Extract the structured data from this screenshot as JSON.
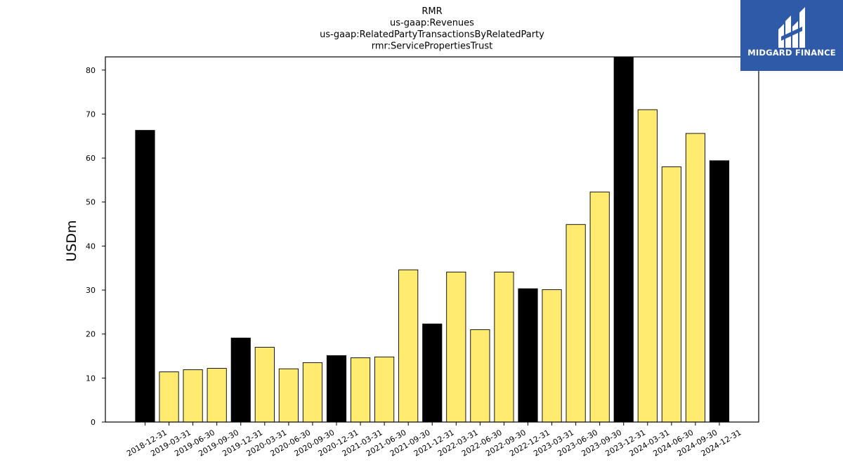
{
  "chart_data": {
    "type": "bar",
    "title_lines": [
      "RMR",
      "us-gaap:Revenues",
      "us-gaap:RelatedPartyTransactionsByRelatedParty",
      "rmr:ServicePropertiesTrust"
    ],
    "xlabel": "",
    "ylabel": "USDm",
    "ylim": [
      0,
      83
    ],
    "yticks": [
      0,
      10,
      20,
      30,
      40,
      50,
      60,
      70,
      80
    ],
    "categories": [
      "2018-12-31",
      "2019-03-31",
      "2019-06-30",
      "2019-09-30",
      "2019-12-31",
      "2020-03-31",
      "2020-06-30",
      "2020-09-30",
      "2020-12-31",
      "2021-03-31",
      "2021-06-30",
      "2021-09-30",
      "2021-12-31",
      "2022-03-31",
      "2022-06-30",
      "2022-09-30",
      "2022-12-31",
      "2023-03-31",
      "2023-06-30",
      "2023-09-30",
      "2023-12-31",
      "2024-03-31",
      "2024-06-30",
      "2024-09-30",
      "2024-12-31"
    ],
    "values": [
      66.3,
      11.4,
      11.9,
      12.2,
      19.1,
      17.0,
      12.1,
      13.5,
      15.1,
      14.6,
      14.8,
      34.6,
      22.3,
      34.1,
      21.0,
      34.1,
      30.3,
      30.1,
      44.9,
      52.3,
      83.0,
      71.0,
      58.0,
      65.6,
      59.4
    ],
    "bar_colors": [
      "#000000",
      "#ffeb70",
      "#ffeb70",
      "#ffeb70",
      "#000000",
      "#ffeb70",
      "#ffeb70",
      "#ffeb70",
      "#000000",
      "#ffeb70",
      "#ffeb70",
      "#ffeb70",
      "#000000",
      "#ffeb70",
      "#ffeb70",
      "#ffeb70",
      "#000000",
      "#ffeb70",
      "#ffeb70",
      "#ffeb70",
      "#000000",
      "#ffeb70",
      "#ffeb70",
      "#ffeb70",
      "#000000"
    ],
    "grid": false,
    "legend": "none"
  },
  "logo": {
    "text": "MIDGARD FINANCE",
    "background": "#2f5aa8",
    "icon": "midgard-logo-icon"
  }
}
